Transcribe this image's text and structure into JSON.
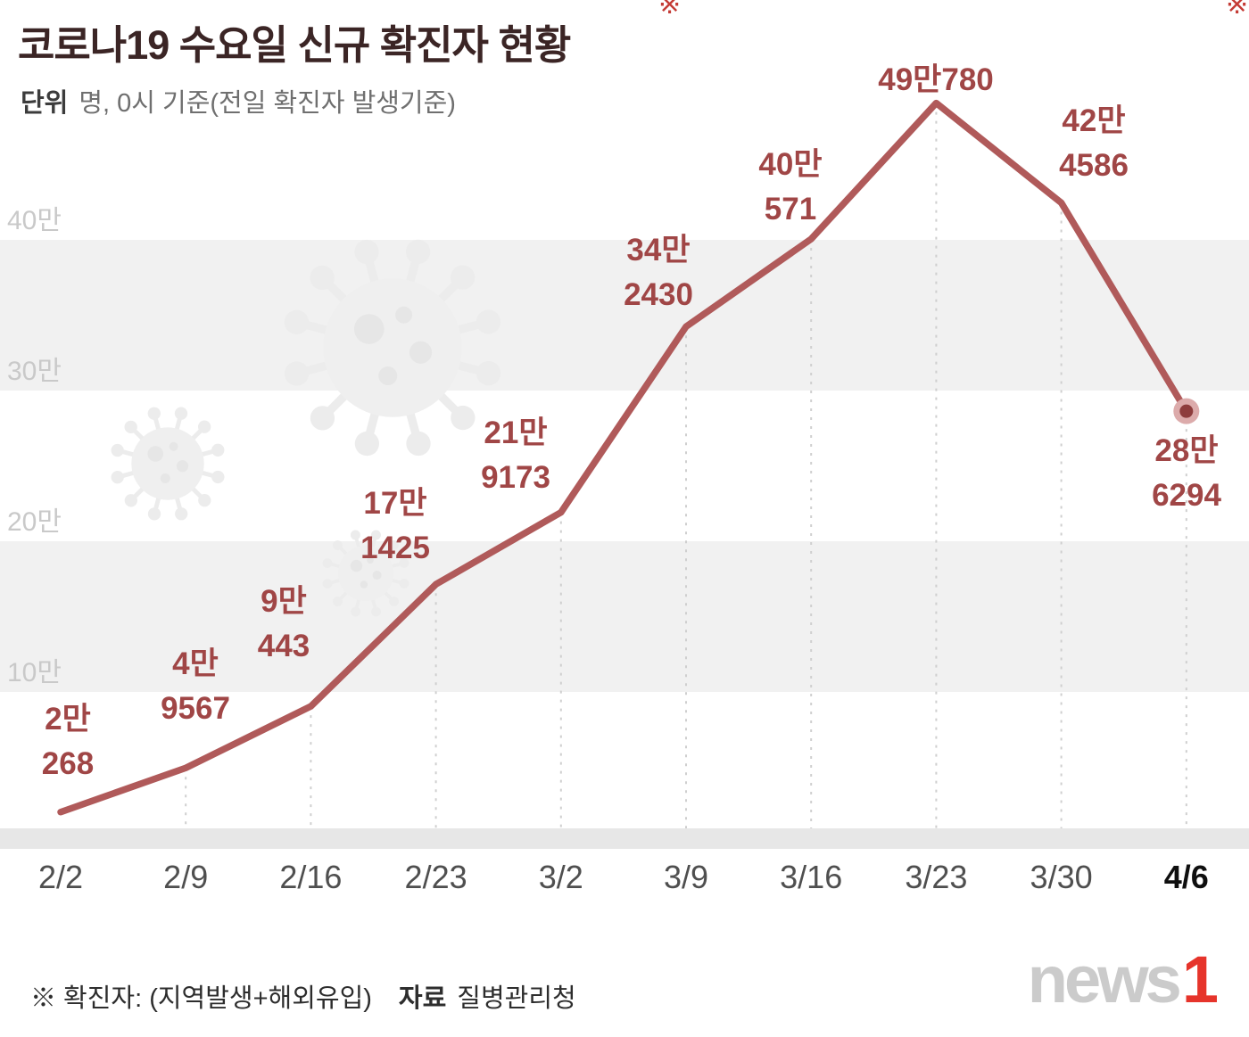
{
  "header": {
    "title": "코로나19 수요일 신규 확진자 현황",
    "unit_label": "단위",
    "unit_desc": "명, 0시 기준(전일 확진자 발생기준)"
  },
  "chart_data": {
    "type": "line",
    "title": "코로나19 수요일 신규 확진자 현황",
    "unit": "명, 0시 기준(전일 확진자 발생기준)",
    "categories": [
      "2/2",
      "2/9",
      "2/16",
      "2/23",
      "3/2",
      "3/9",
      "3/16",
      "3/23",
      "3/30",
      "4/6"
    ],
    "values": [
      20268,
      49567,
      90443,
      171425,
      219173,
      342430,
      400571,
      490780,
      424586,
      286294
    ],
    "point_labels": [
      [
        "2만",
        "268"
      ],
      [
        "4만",
        "9567"
      ],
      [
        "9만",
        "443"
      ],
      [
        "17만",
        "1425"
      ],
      [
        "21만",
        "9173"
      ],
      [
        "34만",
        "2430"
      ],
      [
        "40만",
        "571"
      ],
      [
        "49만780"
      ],
      [
        "42만",
        "4586"
      ],
      [
        "28만",
        "6294"
      ]
    ],
    "ylabels": [
      {
        "value": 400000,
        "label": "40만"
      },
      {
        "value": 300000,
        "label": "30만"
      },
      {
        "value": 200000,
        "label": "20만"
      },
      {
        "value": 100000,
        "label": "10만"
      }
    ],
    "ylim": [
      0,
      500000
    ],
    "xlabel": "",
    "ylabel": "명",
    "grid": "alternating-horizontal-bands",
    "legend": "none",
    "highlight_last_category": "4/6",
    "line_color": "#b05a5a",
    "label_color": "#a04646",
    "marker_outer_color": "#dcabab",
    "marker_inner_color": "#8d3c3c",
    "band_color": "#f1f1f1",
    "axis_band_color": "#e7e7e7",
    "xlabel_color": "#4f4f4f",
    "xlabel_last_color": "#0f0f0f",
    "ylabel_color": "#c9c9c9"
  },
  "footer": {
    "note": "※ 확진자: (지역발생+해외유입)",
    "source_label": "자료",
    "source": "질병관리청",
    "logo": {
      "gray": "news",
      "red": "1"
    }
  },
  "decor": {
    "virus_icon": "coronavirus",
    "topmarks": [
      "※",
      "※"
    ]
  }
}
